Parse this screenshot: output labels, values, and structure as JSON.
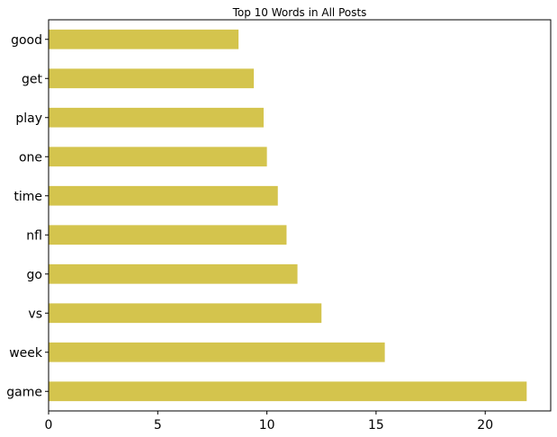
{
  "chart_data": {
    "type": "bar",
    "orientation": "horizontal",
    "title": "Top 10 Words in All Posts",
    "xlabel": "",
    "ylabel": "",
    "categories": [
      "game",
      "week",
      "vs",
      "go",
      "nfl",
      "time",
      "one",
      "play",
      "get",
      "good"
    ],
    "values": [
      21.9,
      15.4,
      12.5,
      11.4,
      10.9,
      10.5,
      10.0,
      9.85,
      9.4,
      8.7
    ],
    "xlim": [
      0,
      23
    ],
    "xticks": [
      0,
      5,
      10,
      15,
      20
    ],
    "grid": false,
    "legend": "none",
    "bar_color": "#d4c44d"
  }
}
